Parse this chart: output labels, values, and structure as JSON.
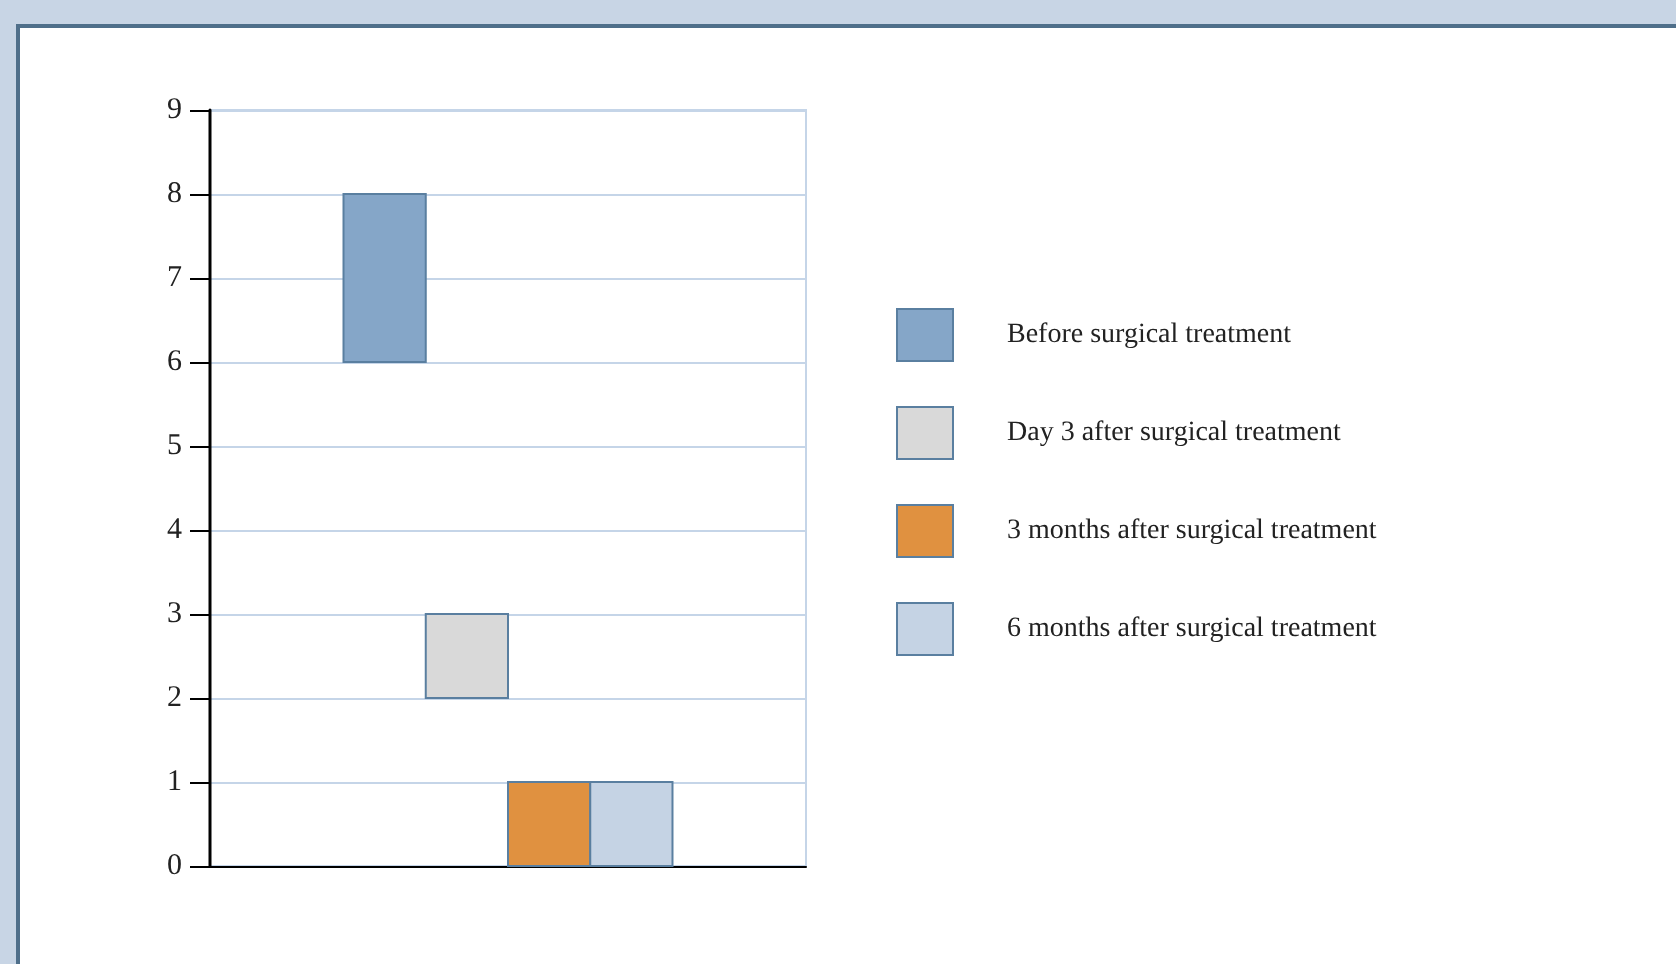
{
  "chart_data": {
    "type": "bar",
    "categories": [
      null
    ],
    "series": [
      {
        "name": "Before surgical treatment",
        "color": "#85a6c8",
        "values": [
          2
        ],
        "base": [
          6
        ]
      },
      {
        "name": "Day 3 after surgical treatment",
        "color": "#d9d9d9",
        "values": [
          1
        ],
        "base": [
          2
        ]
      },
      {
        "name": "3 months after surgical treatment",
        "color": "#e09140",
        "values": [
          1
        ],
        "base": [
          0
        ]
      },
      {
        "name": "6 months after surgical treatment",
        "color": "#c5d3e4",
        "values": [
          1
        ],
        "base": [
          0
        ]
      }
    ],
    "ylim": [
      0,
      9
    ],
    "yticks": [
      0,
      1,
      2,
      3,
      4,
      5,
      6,
      7,
      8,
      9
    ],
    "grid": "y",
    "legend": "right"
  }
}
